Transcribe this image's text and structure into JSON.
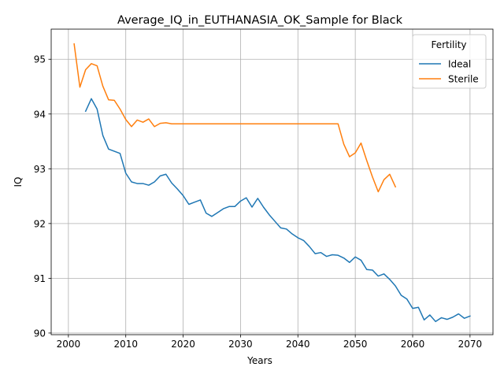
{
  "chart_data": {
    "type": "line",
    "title": "Average_IQ_in_EUTHANASIA_OK_Sample for Black",
    "xlabel": "Years",
    "ylabel": "IQ",
    "xlim": [
      1997,
      2074
    ],
    "ylim": [
      89.97,
      95.55
    ],
    "xticks": [
      2000,
      2010,
      2020,
      2030,
      2040,
      2050,
      2060,
      2070
    ],
    "yticks": [
      90,
      91,
      92,
      93,
      94,
      95
    ],
    "grid": true,
    "legend": {
      "title": "Fertility",
      "placement": "top-right"
    },
    "series": [
      {
        "name": "Ideal",
        "color": "#1f77b4",
        "x": [
          2003,
          2004,
          2005,
          2006,
          2007,
          2008,
          2009,
          2010,
          2011,
          2012,
          2013,
          2014,
          2015,
          2016,
          2017,
          2018,
          2019,
          2020,
          2021,
          2022,
          2023,
          2024,
          2025,
          2026,
          2027,
          2028,
          2029,
          2030,
          2031,
          2032,
          2033,
          2034,
          2035,
          2036,
          2037,
          2038,
          2039,
          2040,
          2041,
          2042,
          2043,
          2044,
          2045,
          2046,
          2047,
          2048,
          2049,
          2050,
          2051,
          2052,
          2053,
          2054,
          2055,
          2056,
          2057,
          2058,
          2059,
          2060,
          2061,
          2062,
          2063,
          2064,
          2065,
          2066,
          2067,
          2068,
          2069,
          2070
        ],
        "y": [
          94.05,
          94.28,
          94.09,
          93.61,
          93.36,
          93.32,
          93.28,
          92.92,
          92.76,
          92.73,
          92.73,
          92.7,
          92.76,
          92.87,
          92.9,
          92.74,
          92.63,
          92.51,
          92.35,
          92.39,
          92.43,
          92.19,
          92.13,
          92.2,
          92.27,
          92.31,
          92.31,
          92.41,
          92.47,
          92.3,
          92.46,
          92.3,
          92.16,
          92.04,
          91.92,
          91.9,
          91.81,
          91.74,
          91.69,
          91.58,
          91.45,
          91.47,
          91.4,
          91.43,
          91.42,
          91.37,
          91.29,
          91.39,
          91.33,
          91.16,
          91.15,
          91.04,
          91.08,
          90.98,
          90.86,
          90.69,
          90.62,
          90.45,
          90.47,
          90.24,
          90.33,
          90.21,
          90.28,
          90.25,
          90.29,
          90.35,
          90.27,
          90.31
        ]
      },
      {
        "name": "Sterile",
        "color": "#ff7f0e",
        "x": [
          2001,
          2002,
          2003,
          2004,
          2005,
          2006,
          2007,
          2008,
          2009,
          2010,
          2011,
          2012,
          2013,
          2014,
          2015,
          2016,
          2017,
          2018,
          2019,
          2020,
          2021,
          2022,
          2023,
          2024,
          2025,
          2026,
          2027,
          2028,
          2029,
          2030,
          2031,
          2032,
          2033,
          2034,
          2035,
          2036,
          2037,
          2038,
          2039,
          2040,
          2041,
          2042,
          2043,
          2044,
          2045,
          2046,
          2047,
          2048,
          2049,
          2050,
          2051,
          2052,
          2053,
          2054,
          2055,
          2056,
          2057
        ],
        "y": [
          95.28,
          94.49,
          94.81,
          94.92,
          94.88,
          94.51,
          94.26,
          94.25,
          94.09,
          93.9,
          93.77,
          93.89,
          93.85,
          93.91,
          93.77,
          93.83,
          93.84,
          93.82,
          93.82,
          93.82,
          93.82,
          93.82,
          93.82,
          93.82,
          93.82,
          93.82,
          93.82,
          93.82,
          93.82,
          93.82,
          93.82,
          93.82,
          93.82,
          93.82,
          93.82,
          93.82,
          93.82,
          93.82,
          93.82,
          93.82,
          93.82,
          93.82,
          93.82,
          93.82,
          93.82,
          93.82,
          93.82,
          93.45,
          93.22,
          93.29,
          93.47,
          93.15,
          92.85,
          92.58,
          92.8,
          92.9,
          92.67
        ]
      }
    ]
  }
}
